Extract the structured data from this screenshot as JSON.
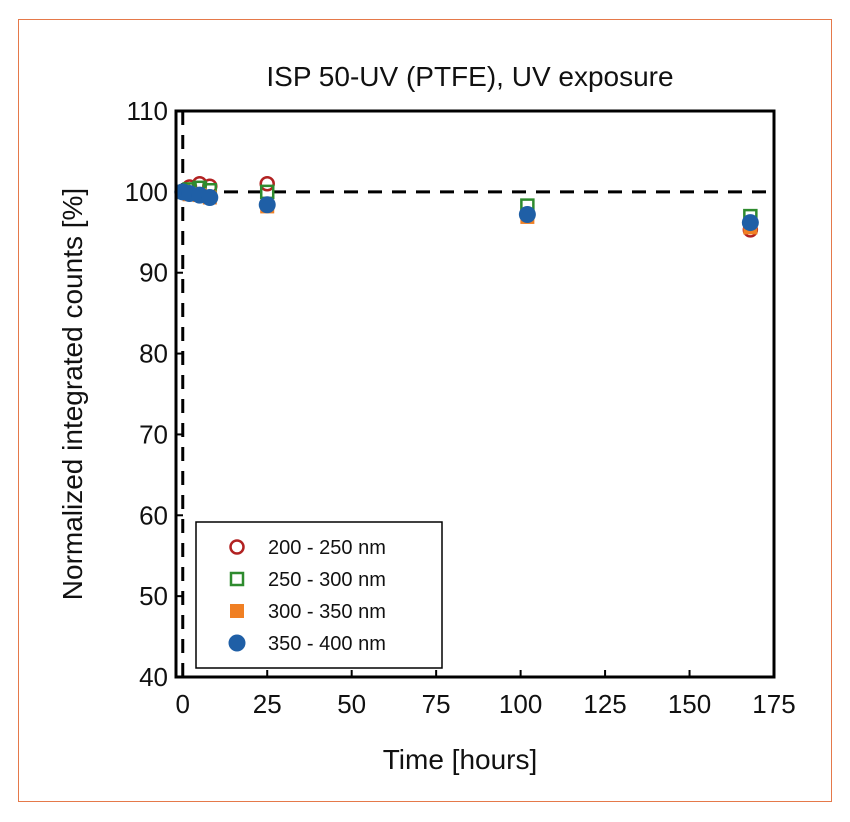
{
  "chart_data": {
    "type": "scatter",
    "title": "ISP 50-UV (PTFE), UV exposure",
    "xlabel": "Time [hours]",
    "ylabel": "Normalized integrated counts [%]",
    "xlim": [
      -2,
      175
    ],
    "ylim": [
      40,
      110
    ],
    "xticks": [
      0,
      25,
      50,
      75,
      100,
      125,
      150,
      175
    ],
    "yticks": [
      40,
      50,
      60,
      70,
      80,
      90,
      100,
      110
    ],
    "grid": false,
    "reference_lines": [
      {
        "orientation": "horizontal",
        "value": 100,
        "style": "dashed"
      },
      {
        "orientation": "vertical",
        "value": 0,
        "style": "dashed"
      }
    ],
    "legend": {
      "position": "bottom-left"
    },
    "series": [
      {
        "name": "200 - 250 nm",
        "marker": "circle-open",
        "color": "#b22222",
        "x": [
          0,
          2,
          5,
          8,
          25,
          102,
          168
        ],
        "y": [
          100.0,
          100.6,
          101.0,
          100.7,
          101.0,
          97.2,
          95.3
        ]
      },
      {
        "name": "250 - 300 nm",
        "marker": "square-open",
        "color": "#2e8b2e",
        "x": [
          0,
          2,
          5,
          8,
          25,
          102,
          168
        ],
        "y": [
          100.0,
          100.3,
          100.5,
          100.2,
          100.0,
          98.3,
          97.0
        ]
      },
      {
        "name": "300 - 350 nm",
        "marker": "square-filled",
        "color": "#f07f23",
        "x": [
          0,
          2,
          5,
          8,
          25,
          102,
          168
        ],
        "y": [
          100.0,
          99.7,
          99.6,
          99.3,
          98.2,
          96.9,
          95.6
        ]
      },
      {
        "name": "350 - 400 nm",
        "marker": "circle-filled",
        "color": "#1f5fa6",
        "x": [
          0,
          2,
          5,
          8,
          25,
          102,
          168
        ],
        "y": [
          100.0,
          99.8,
          99.6,
          99.3,
          98.4,
          97.2,
          96.2
        ]
      }
    ]
  }
}
